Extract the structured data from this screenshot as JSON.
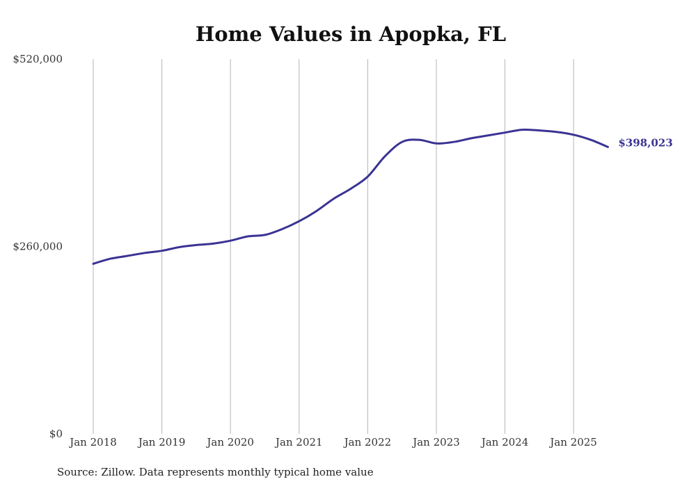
{
  "chart_data": {
    "type": "line",
    "title": "Home Values in Apopka, FL",
    "source": "Source: Zillow. Data represents monthly typical home value",
    "xlabel": "",
    "ylabel": "",
    "ylim": [
      0,
      520000
    ],
    "y_ticks": [
      {
        "value": 0,
        "label": "$0"
      },
      {
        "value": 260000,
        "label": "$260,000"
      },
      {
        "value": 520000,
        "label": "$520,000"
      }
    ],
    "x_ticks": [
      {
        "value": "2018-01",
        "label": "Jan 2018"
      },
      {
        "value": "2019-01",
        "label": "Jan 2019"
      },
      {
        "value": "2020-01",
        "label": "Jan 2020"
      },
      {
        "value": "2021-01",
        "label": "Jan 2021"
      },
      {
        "value": "2022-01",
        "label": "Jan 2022"
      },
      {
        "value": "2023-01",
        "label": "Jan 2023"
      },
      {
        "value": "2024-01",
        "label": "Jan 2024"
      },
      {
        "value": "2025-01",
        "label": "Jan 2025"
      }
    ],
    "grid": {
      "vertical": true,
      "horizontal": false
    },
    "line_color": "#3a3393",
    "end_label": "$398,023",
    "series": [
      {
        "points": [
          {
            "x": "2018-01",
            "y": 236000
          },
          {
            "x": "2018-04",
            "y": 243000
          },
          {
            "x": "2018-07",
            "y": 247000
          },
          {
            "x": "2018-10",
            "y": 251000
          },
          {
            "x": "2019-01",
            "y": 254000
          },
          {
            "x": "2019-04",
            "y": 259000
          },
          {
            "x": "2019-07",
            "y": 262000
          },
          {
            "x": "2019-10",
            "y": 264000
          },
          {
            "x": "2020-01",
            "y": 268000
          },
          {
            "x": "2020-04",
            "y": 274000
          },
          {
            "x": "2020-07",
            "y": 276000
          },
          {
            "x": "2020-10",
            "y": 284000
          },
          {
            "x": "2021-01",
            "y": 295000
          },
          {
            "x": "2021-04",
            "y": 309000
          },
          {
            "x": "2021-07",
            "y": 326000
          },
          {
            "x": "2021-10",
            "y": 340000
          },
          {
            "x": "2022-01",
            "y": 357000
          },
          {
            "x": "2022-04",
            "y": 385000
          },
          {
            "x": "2022-07",
            "y": 405000
          },
          {
            "x": "2022-10",
            "y": 408000
          },
          {
            "x": "2023-01",
            "y": 403000
          },
          {
            "x": "2023-04",
            "y": 405000
          },
          {
            "x": "2023-07",
            "y": 410000
          },
          {
            "x": "2023-10",
            "y": 414000
          },
          {
            "x": "2024-01",
            "y": 418000
          },
          {
            "x": "2024-04",
            "y": 422000
          },
          {
            "x": "2024-07",
            "y": 421000
          },
          {
            "x": "2024-10",
            "y": 419000
          },
          {
            "x": "2025-01",
            "y": 415000
          },
          {
            "x": "2025-04",
            "y": 408000
          },
          {
            "x": "2025-07",
            "y": 398023
          }
        ]
      }
    ]
  }
}
